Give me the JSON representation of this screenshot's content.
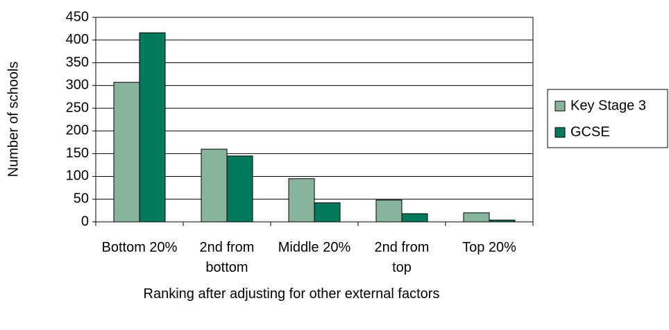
{
  "chart_data": {
    "type": "bar",
    "x_label": "Ranking after adjusting for other external factors",
    "y_label": "Number of schools",
    "categories": [
      "Bottom 20%",
      "2nd from bottom",
      "Middle 20%",
      "2nd from top",
      "Top 20%"
    ],
    "series": [
      {
        "name": "Key Stage 3",
        "color": "#86b59b",
        "values": [
          307,
          160,
          95,
          48,
          20
        ]
      },
      {
        "name": "GCSE",
        "color": "#007a5a",
        "values": [
          416,
          145,
          42,
          18,
          4
        ]
      }
    ],
    "ylim": [
      0,
      450
    ],
    "yticks": [
      0,
      50,
      100,
      150,
      200,
      250,
      300,
      350,
      400,
      450
    ],
    "grid": true,
    "legend": "right"
  }
}
